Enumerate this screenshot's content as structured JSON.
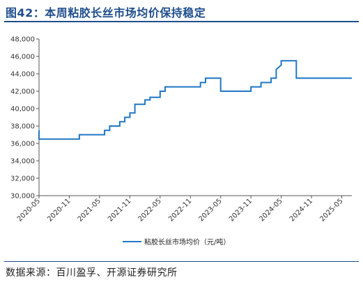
{
  "title": "图42：本周粘胶长丝市场均价保持稳定",
  "source": "数据来源：百川盈孚、开源证券研究所",
  "chart_data": {
    "type": "line",
    "ylim": [
      30000,
      48000
    ],
    "yticks": [
      30000,
      32000,
      34000,
      36000,
      38000,
      40000,
      42000,
      44000,
      46000,
      48000
    ],
    "ytick_labels": [
      "30,000",
      "32,000",
      "34,000",
      "36,000",
      "38,000",
      "40,000",
      "42,000",
      "44,000",
      "46,000",
      "48,000"
    ],
    "xlim": [
      "2020-05",
      "2025-07"
    ],
    "xticks": [
      "2020-05",
      "2020-11",
      "2021-05",
      "2021-11",
      "2022-05",
      "2022-11",
      "2023-05",
      "2023-11",
      "2024-05",
      "2024-11",
      "2025-05"
    ],
    "grid": false,
    "legend_position": "bottom",
    "color": "#1f77c4",
    "series": [
      {
        "name": "粘胶长丝市场均价（元/吨）",
        "points": [
          [
            "2020-05",
            37500
          ],
          [
            "2020-05",
            36500
          ],
          [
            "2021-01",
            36500
          ],
          [
            "2021-01",
            37000
          ],
          [
            "2021-06",
            37000
          ],
          [
            "2021-06",
            37500
          ],
          [
            "2021-07",
            37500
          ],
          [
            "2021-07",
            38000
          ],
          [
            "2021-09",
            38000
          ],
          [
            "2021-09",
            38500
          ],
          [
            "2021-10",
            38500
          ],
          [
            "2021-10",
            39000
          ],
          [
            "2021-11",
            39000
          ],
          [
            "2021-11",
            39500
          ],
          [
            "2021-12",
            39500
          ],
          [
            "2021-12",
            40000
          ],
          [
            "2021-12",
            40500
          ],
          [
            "2022-02",
            40500
          ],
          [
            "2022-02",
            41000
          ],
          [
            "2022-03",
            41000
          ],
          [
            "2022-03",
            41300
          ],
          [
            "2022-05",
            41300
          ],
          [
            "2022-05",
            42000
          ],
          [
            "2022-06",
            42000
          ],
          [
            "2022-06",
            42500
          ],
          [
            "2023-01",
            42500
          ],
          [
            "2023-01",
            43000
          ],
          [
            "2023-02",
            43000
          ],
          [
            "2023-02",
            43500
          ],
          [
            "2023-05",
            43500
          ],
          [
            "2023-05",
            42000
          ],
          [
            "2023-11",
            42000
          ],
          [
            "2023-11",
            42500
          ],
          [
            "2024-01",
            42500
          ],
          [
            "2024-01",
            43000
          ],
          [
            "2024-03",
            43000
          ],
          [
            "2024-03",
            43500
          ],
          [
            "2024-04",
            43500
          ],
          [
            "2024-04",
            44500
          ],
          [
            "2024-05",
            45000
          ],
          [
            "2024-05",
            45500
          ],
          [
            "2024-08",
            45500
          ],
          [
            "2024-08",
            43500
          ],
          [
            "2025-07",
            43500
          ]
        ]
      }
    ]
  }
}
